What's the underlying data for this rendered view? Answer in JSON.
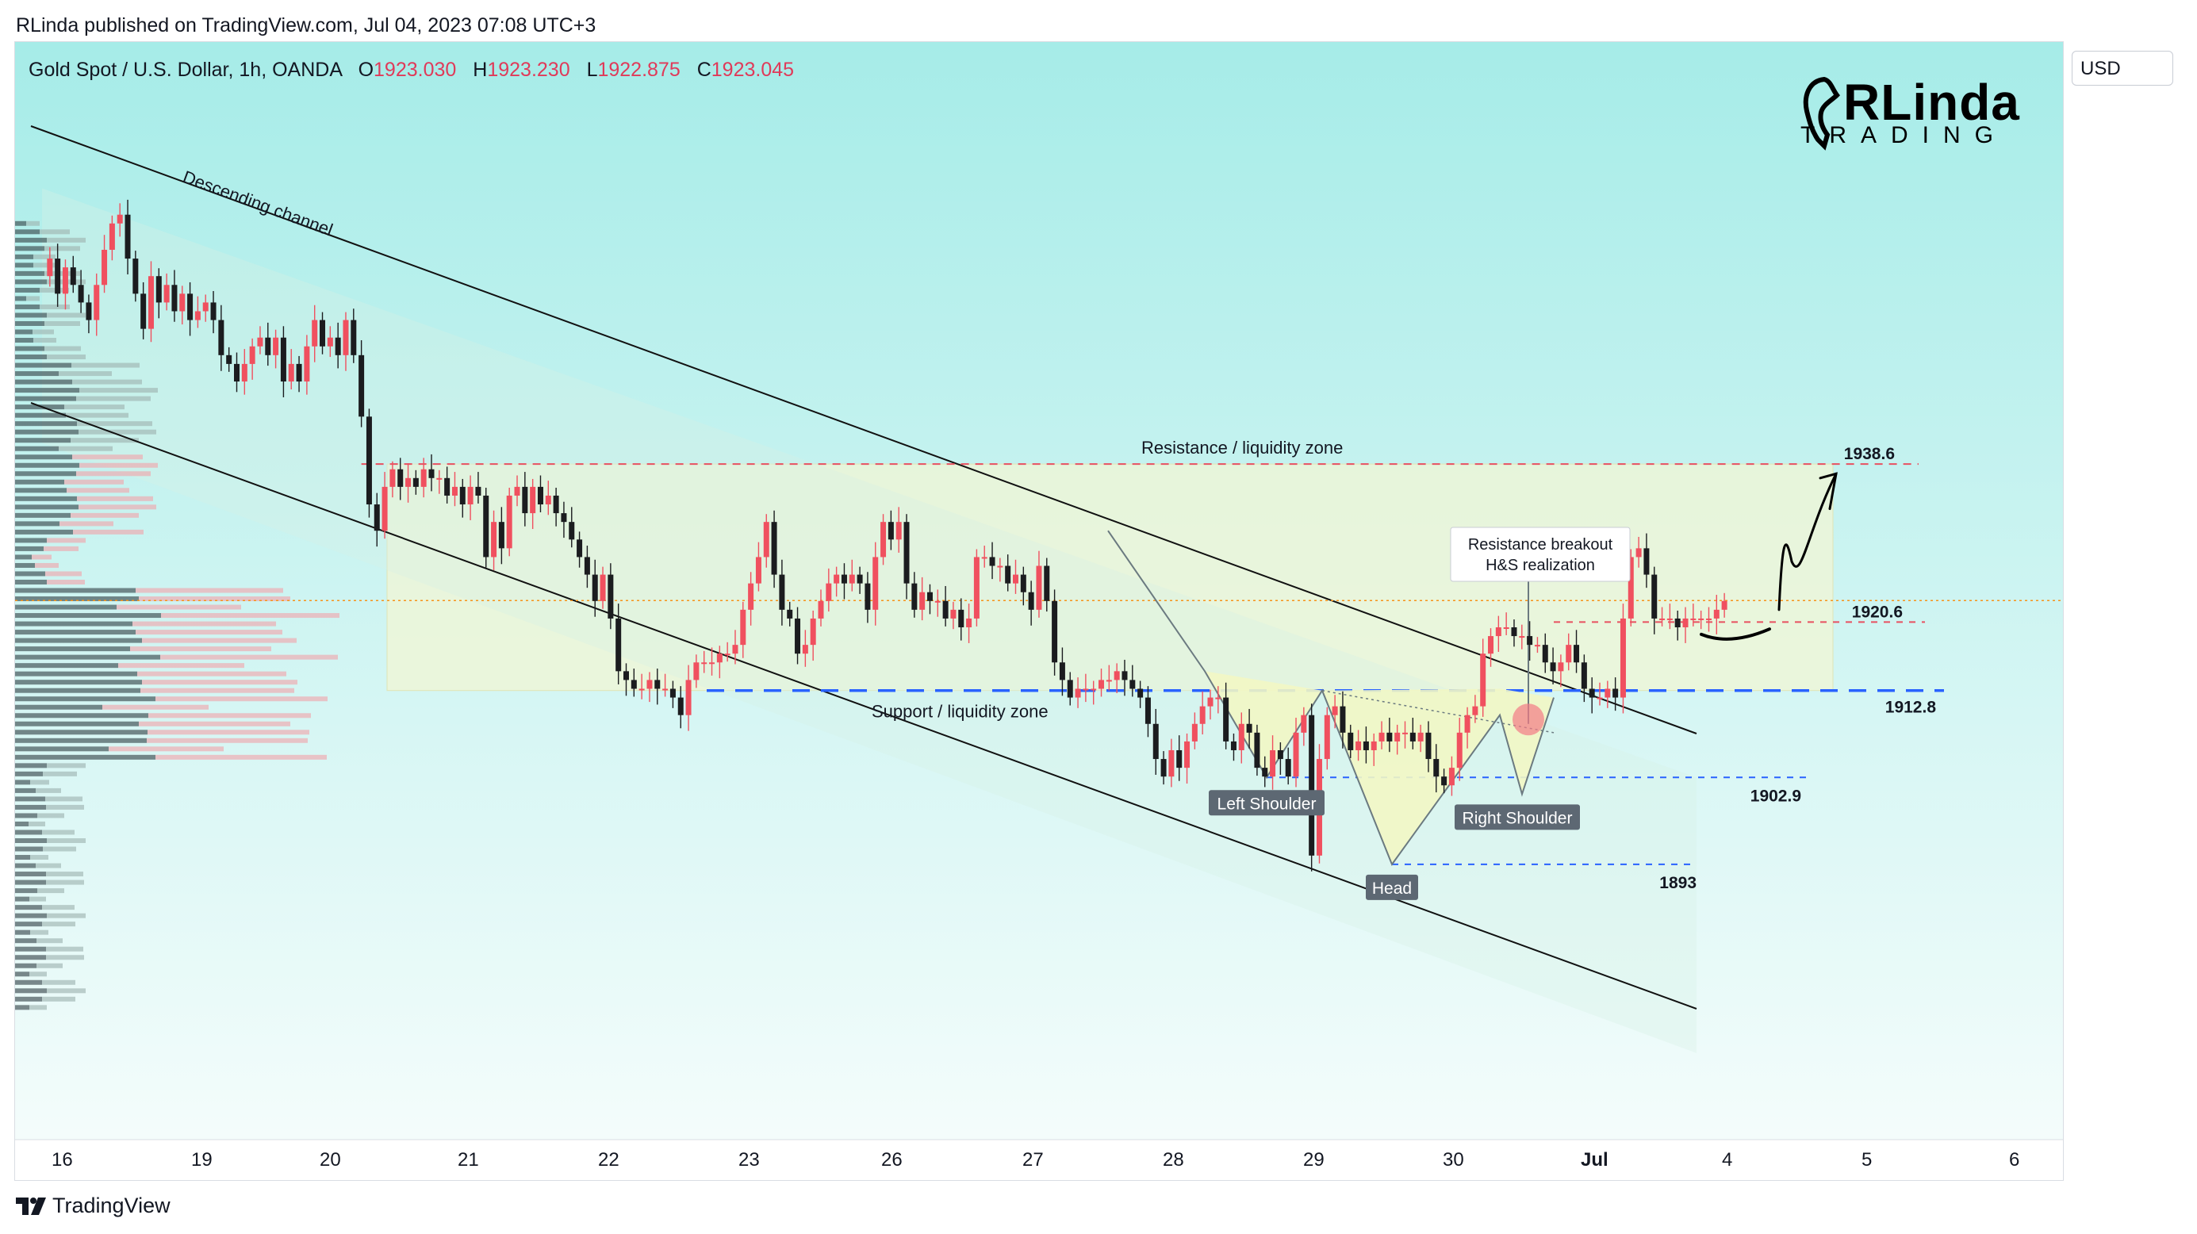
{
  "header": {
    "published": "RLinda published on TradingView.com, Jul 04, 2023 07:08 UTC+3"
  },
  "footer": {
    "brand": "TradingView"
  },
  "currency_button": {
    "label": "USD"
  },
  "logo": {
    "main": "RLinda",
    "sub": "TRADING"
  },
  "legend": {
    "symbol": "Gold Spot / U.S. Dollar, 1h, OANDA",
    "o_label": "O",
    "o": "1923.030",
    "h_label": "H",
    "h": "1923.230",
    "l_label": "L",
    "l": "1922.875",
    "c_label": "C",
    "c": "1923.045"
  },
  "colors": {
    "bg_top": "#a6ece8",
    "bg_bottom": "#f5fdfb",
    "up": "#f0505f",
    "down": "#1b1c1f",
    "level_red": "#e85060",
    "level_blue": "#2962ff",
    "price_tag": "#f7931a"
  },
  "chart_data": {
    "type": "candlestick",
    "symbol": "Gold Spot / U.S. Dollar",
    "timeframe": "1h",
    "ylim": [
      1855,
      1980
    ],
    "y_ticks": [
      "1970.000",
      "1960.000",
      "1950.000",
      "1940.000",
      "1930.000",
      "1920.000",
      "1910.000",
      "1900.000",
      "1890.000",
      "1880.000",
      "1870.000",
      "1860.000"
    ],
    "x_ticks": [
      "16",
      "19",
      "20",
      "21",
      "22",
      "23",
      "26",
      "27",
      "28",
      "29",
      "30",
      "Jul",
      "4",
      "5",
      "6"
    ],
    "last_price": "1923.045",
    "levels": [
      {
        "label": "1938.6",
        "value": 1938.6,
        "style": "red-dashed"
      },
      {
        "label": "1920.6",
        "value": 1920.6,
        "style": "red-dashed"
      },
      {
        "label": "1912.8",
        "value": 1912.8,
        "style": "blue-dashed"
      },
      {
        "label": "1902.9",
        "value": 1902.9,
        "style": "blue-dashed"
      },
      {
        "label": "1893",
        "value": 1893,
        "style": "blue-dashed"
      }
    ],
    "annotations": {
      "channel": "Descending channel",
      "resistance_zone": "Resistance / liquidity zone",
      "support_zone": "Support / liquidity zone",
      "breakout_line1": "Resistance breakout",
      "breakout_line2": "H&S realization",
      "left_shoulder": "Left Shoulder",
      "head": "Head",
      "right_shoulder": "Right Shoulder"
    },
    "path": [
      [
        0,
        1960
      ],
      [
        1,
        1962
      ],
      [
        2,
        1958
      ],
      [
        3,
        1961
      ],
      [
        4,
        1959
      ],
      [
        5,
        1957
      ],
      [
        6,
        1955
      ],
      [
        7,
        1959
      ],
      [
        8,
        1963
      ],
      [
        9,
        1966
      ],
      [
        10,
        1967
      ],
      [
        11,
        1962
      ],
      [
        12,
        1958
      ],
      [
        13,
        1954
      ],
      [
        14,
        1960
      ],
      [
        15,
        1957
      ],
      [
        16,
        1959
      ],
      [
        17,
        1956
      ],
      [
        18,
        1958
      ],
      [
        19,
        1955
      ],
      [
        20,
        1956
      ],
      [
        21,
        1957
      ],
      [
        22,
        1955
      ],
      [
        23,
        1951
      ],
      [
        24,
        1950
      ],
      [
        25,
        1948
      ],
      [
        26,
        1950
      ],
      [
        27,
        1952
      ],
      [
        28,
        1953
      ],
      [
        29,
        1951
      ],
      [
        30,
        1953
      ],
      [
        31,
        1948
      ],
      [
        32,
        1950
      ],
      [
        33,
        1948
      ],
      [
        34,
        1952
      ],
      [
        35,
        1955
      ],
      [
        36,
        1952
      ],
      [
        37,
        1953
      ],
      [
        38,
        1951
      ],
      [
        39,
        1955
      ],
      [
        40,
        1951
      ],
      [
        41,
        1944
      ],
      [
        42,
        1934
      ],
      [
        43,
        1931
      ],
      [
        44,
        1936
      ],
      [
        45,
        1938
      ],
      [
        46,
        1936
      ],
      [
        47,
        1937
      ],
      [
        48,
        1936
      ],
      [
        49,
        1938
      ],
      [
        50,
        1937
      ],
      [
        51,
        1937
      ],
      [
        52,
        1935
      ],
      [
        53,
        1936
      ],
      [
        54,
        1934
      ],
      [
        55,
        1936
      ],
      [
        56,
        1935
      ],
      [
        57,
        1928
      ],
      [
        58,
        1932
      ],
      [
        59,
        1929
      ],
      [
        60,
        1935
      ],
      [
        61,
        1936
      ],
      [
        62,
        1933
      ],
      [
        63,
        1936
      ],
      [
        64,
        1934
      ],
      [
        65,
        1935
      ],
      [
        66,
        1933
      ],
      [
        67,
        1932
      ],
      [
        68,
        1930
      ],
      [
        69,
        1928
      ],
      [
        70,
        1926
      ],
      [
        71,
        1923
      ],
      [
        72,
        1926
      ],
      [
        73,
        1921
      ],
      [
        74,
        1915
      ],
      [
        75,
        1914
      ],
      [
        76,
        1913
      ],
      [
        77,
        1913
      ],
      [
        78,
        1914
      ],
      [
        79,
        1913
      ],
      [
        80,
        1913
      ],
      [
        81,
        1912
      ],
      [
        82,
        1910
      ],
      [
        83,
        1914
      ],
      [
        84,
        1916
      ],
      [
        85,
        1916
      ],
      [
        86,
        1916
      ],
      [
        87,
        1917
      ],
      [
        88,
        1917
      ],
      [
        89,
        1918
      ],
      [
        90,
        1922
      ],
      [
        91,
        1925
      ],
      [
        92,
        1928
      ],
      [
        93,
        1932
      ],
      [
        94,
        1926
      ],
      [
        95,
        1922
      ],
      [
        96,
        1921
      ],
      [
        97,
        1917
      ],
      [
        98,
        1918
      ],
      [
        99,
        1921
      ],
      [
        100,
        1923
      ],
      [
        101,
        1925
      ],
      [
        102,
        1926
      ],
      [
        103,
        1925
      ],
      [
        104,
        1926
      ],
      [
        105,
        1925
      ],
      [
        106,
        1922
      ],
      [
        107,
        1928
      ],
      [
        108,
        1932
      ],
      [
        109,
        1930
      ],
      [
        110,
        1932
      ],
      [
        111,
        1925
      ],
      [
        112,
        1922
      ],
      [
        113,
        1924
      ],
      [
        114,
        1923
      ],
      [
        115,
        1923
      ],
      [
        116,
        1921
      ],
      [
        117,
        1922
      ],
      [
        118,
        1920
      ],
      [
        119,
        1921
      ],
      [
        120,
        1928
      ],
      [
        121,
        1928
      ],
      [
        122,
        1927
      ],
      [
        123,
        1927
      ],
      [
        124,
        1925
      ],
      [
        125,
        1926
      ],
      [
        126,
        1924
      ],
      [
        127,
        1922
      ],
      [
        128,
        1927
      ],
      [
        129,
        1923
      ],
      [
        130,
        1916
      ],
      [
        131,
        1914
      ],
      [
        132,
        1912
      ],
      [
        133,
        1913
      ],
      [
        134,
        1913
      ],
      [
        135,
        1913
      ],
      [
        136,
        1914
      ],
      [
        137,
        1914
      ],
      [
        138,
        1915
      ],
      [
        139,
        1914
      ],
      [
        140,
        1913
      ],
      [
        141,
        1912
      ],
      [
        142,
        1909
      ],
      [
        143,
        1905
      ],
      [
        144,
        1903
      ],
      [
        145,
        1906
      ],
      [
        146,
        1904
      ],
      [
        147,
        1907
      ],
      [
        148,
        1909
      ],
      [
        149,
        1911
      ],
      [
        150,
        1912
      ],
      [
        151,
        1912
      ],
      [
        152,
        1907
      ],
      [
        153,
        1906
      ],
      [
        154,
        1909
      ],
      [
        155,
        1908
      ],
      [
        156,
        1904
      ],
      [
        157,
        1903
      ],
      [
        158,
        1906
      ],
      [
        159,
        1905
      ],
      [
        160,
        1903
      ],
      [
        161,
        1908
      ],
      [
        162,
        1910
      ],
      [
        163,
        1894
      ],
      [
        164,
        1905
      ],
      [
        165,
        1910
      ],
      [
        166,
        1911
      ],
      [
        167,
        1908
      ],
      [
        168,
        1906
      ],
      [
        169,
        1907
      ],
      [
        170,
        1906
      ],
      [
        171,
        1907
      ],
      [
        172,
        1908
      ],
      [
        173,
        1907
      ],
      [
        174,
        1908
      ],
      [
        175,
        1908
      ],
      [
        176,
        1907
      ],
      [
        177,
        1908
      ],
      [
        178,
        1905
      ],
      [
        179,
        1903
      ],
      [
        180,
        1902
      ],
      [
        181,
        1904
      ],
      [
        182,
        1908
      ],
      [
        183,
        1910
      ],
      [
        184,
        1911
      ],
      [
        185,
        1917
      ],
      [
        186,
        1919
      ],
      [
        187,
        1920
      ],
      [
        188,
        1920
      ],
      [
        189,
        1919
      ],
      [
        190,
        1919
      ],
      [
        191,
        1918
      ],
      [
        192,
        1918
      ],
      [
        193,
        1916
      ],
      [
        194,
        1915
      ],
      [
        195,
        1916
      ],
      [
        196,
        1918
      ],
      [
        197,
        1916
      ],
      [
        198,
        1913
      ],
      [
        199,
        1912
      ],
      [
        200,
        1912
      ],
      [
        201,
        1913
      ],
      [
        202,
        1912
      ],
      [
        203,
        1921
      ],
      [
        204,
        1928
      ],
      [
        205,
        1929
      ],
      [
        206,
        1926
      ],
      [
        207,
        1921
      ],
      [
        208,
        1921
      ],
      [
        209,
        1921
      ],
      [
        210,
        1920
      ],
      [
        211,
        1921
      ],
      [
        212,
        1921
      ],
      [
        213,
        1921
      ],
      [
        214,
        1921
      ],
      [
        215,
        1922
      ],
      [
        216,
        1923
      ]
    ]
  }
}
